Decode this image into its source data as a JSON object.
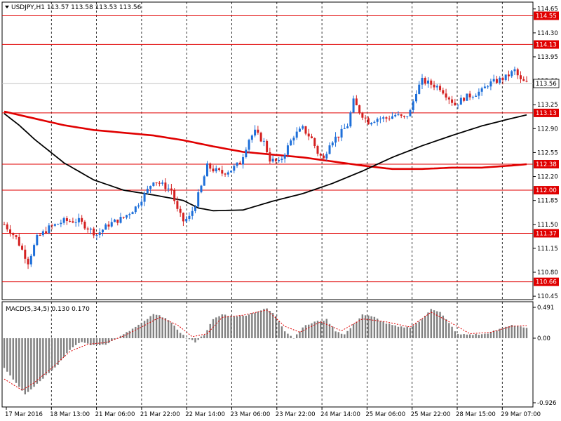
{
  "colors": {
    "background": "#ffffff",
    "grid": "#000000",
    "bull": "#1e6fd9",
    "bear": "#d42020",
    "level": "#e00000",
    "ma_slow": "#e00000",
    "ma_fast": "#000000",
    "macd_hist": "#808080",
    "macd_signal": "#e00000",
    "current_price_line": "#c0c0c0"
  },
  "chart_data": [
    {
      "type": "candlestick",
      "symbol": "USDJPY,H1",
      "header": "USDJPY,H1  113.57 113.58 113.53 113.56",
      "open": 113.57,
      "high": 113.58,
      "low": 113.53,
      "close": 113.56,
      "ylim": [
        110.4,
        114.75
      ],
      "y_ticks": [
        "114.65",
        "114.30",
        "113.95",
        "113.60",
        "113.25",
        "112.90",
        "112.55",
        "112.20",
        "111.85",
        "111.50",
        "111.15",
        "110.80",
        "110.45"
      ],
      "x_ticks": [
        "17 Mar 2016",
        "18 Mar 13:00",
        "21 Mar 06:00",
        "21 Mar 22:00",
        "22 Mar 14:00",
        "23 Mar 06:00",
        "23 Mar 22:00",
        "24 Mar 14:00",
        "25 Mar 06:00",
        "25 Mar 22:00",
        "28 Mar 15:00",
        "29 Mar 07:00"
      ],
      "levels": [
        {
          "value": 114.55,
          "label": "114.55"
        },
        {
          "value": 114.13,
          "label": "114.13"
        },
        {
          "value": 113.13,
          "label": "113.13"
        },
        {
          "value": 112.38,
          "label": "112.38"
        },
        {
          "value": 112.0,
          "label": "112.00"
        },
        {
          "value": 111.37,
          "label": "111.37"
        },
        {
          "value": 110.66,
          "label": "110.66"
        }
      ],
      "current_price": {
        "value": 113.56,
        "label": "113.56"
      },
      "close_path": [
        [
          0,
          111.5
        ],
        [
          4,
          111.3
        ],
        [
          8,
          110.95
        ],
        [
          11,
          111.3
        ],
        [
          15,
          111.45
        ],
        [
          20,
          111.55
        ],
        [
          25,
          111.55
        ],
        [
          28,
          111.45
        ],
        [
          31,
          111.35
        ],
        [
          35,
          111.5
        ],
        [
          40,
          111.6
        ],
        [
          44,
          111.75
        ],
        [
          48,
          112.0
        ],
        [
          50,
          112.15
        ],
        [
          54,
          112.05
        ],
        [
          56,
          112.0
        ],
        [
          58,
          111.7
        ],
        [
          60,
          111.55
        ],
        [
          62,
          111.6
        ],
        [
          64,
          111.8
        ],
        [
          66,
          112.05
        ],
        [
          68,
          112.35
        ],
        [
          70,
          112.3
        ],
        [
          73,
          112.25
        ],
        [
          76,
          112.3
        ],
        [
          79,
          112.4
        ],
        [
          82,
          112.75
        ],
        [
          84,
          112.85
        ],
        [
          87,
          112.7
        ],
        [
          89,
          112.45
        ],
        [
          92,
          112.4
        ],
        [
          94,
          112.55
        ],
        [
          97,
          112.8
        ],
        [
          100,
          112.9
        ],
        [
          103,
          112.75
        ],
        [
          105,
          112.55
        ],
        [
          107,
          112.45
        ],
        [
          109,
          112.7
        ],
        [
          112,
          112.8
        ],
        [
          115,
          112.95
        ],
        [
          117,
          113.3
        ],
        [
          119,
          113.15
        ],
        [
          122,
          113.0
        ],
        [
          125,
          113.05
        ],
        [
          128,
          113.05
        ],
        [
          131,
          113.1
        ],
        [
          134,
          113.05
        ],
        [
          136,
          113.15
        ],
        [
          138,
          113.45
        ],
        [
          140,
          113.6
        ],
        [
          143,
          113.55
        ],
        [
          146,
          113.5
        ],
        [
          149,
          113.35
        ],
        [
          151,
          113.25
        ],
        [
          154,
          113.35
        ],
        [
          157,
          113.4
        ],
        [
          160,
          113.45
        ],
        [
          162,
          113.55
        ],
        [
          165,
          113.6
        ],
        [
          168,
          113.65
        ],
        [
          171,
          113.75
        ],
        [
          173,
          113.6
        ],
        [
          175,
          113.56
        ]
      ],
      "ma_slow_path": [
        [
          0,
          113.15
        ],
        [
          10,
          113.05
        ],
        [
          20,
          112.95
        ],
        [
          30,
          112.88
        ],
        [
          40,
          112.84
        ],
        [
          50,
          112.8
        ],
        [
          60,
          112.73
        ],
        [
          70,
          112.64
        ],
        [
          80,
          112.56
        ],
        [
          90,
          112.52
        ],
        [
          100,
          112.48
        ],
        [
          110,
          112.42
        ],
        [
          120,
          112.36
        ],
        [
          130,
          112.31
        ],
        [
          140,
          112.31
        ],
        [
          150,
          112.33
        ],
        [
          160,
          112.33
        ],
        [
          170,
          112.36
        ],
        [
          175,
          112.38
        ]
      ],
      "ma_fast_path": [
        [
          0,
          113.12
        ],
        [
          5,
          112.95
        ],
        [
          10,
          112.75
        ],
        [
          20,
          112.4
        ],
        [
          30,
          112.15
        ],
        [
          40,
          112.0
        ],
        [
          50,
          111.93
        ],
        [
          60,
          111.85
        ],
        [
          65,
          111.74
        ],
        [
          70,
          111.7
        ],
        [
          80,
          111.71
        ],
        [
          90,
          111.84
        ],
        [
          100,
          111.95
        ],
        [
          110,
          112.1
        ],
        [
          120,
          112.28
        ],
        [
          130,
          112.48
        ],
        [
          140,
          112.65
        ],
        [
          150,
          112.8
        ],
        [
          160,
          112.94
        ],
        [
          170,
          113.05
        ],
        [
          175,
          113.1
        ]
      ]
    },
    {
      "type": "bar",
      "title": "MACD(5,34,5) 0.130 0.170",
      "ylim": [
        -0.926,
        0.491
      ],
      "y_ticks": [
        "0.491",
        "0.00",
        "-0.926"
      ],
      "hist_path": [
        [
          0,
          -0.4
        ],
        [
          4,
          -0.6
        ],
        [
          7,
          -0.75
        ],
        [
          10,
          -0.65
        ],
        [
          14,
          -0.5
        ],
        [
          18,
          -0.35
        ],
        [
          22,
          -0.15
        ],
        [
          26,
          -0.05
        ],
        [
          30,
          -0.1
        ],
        [
          34,
          -0.08
        ],
        [
          38,
          0.0
        ],
        [
          42,
          0.1
        ],
        [
          46,
          0.2
        ],
        [
          50,
          0.32
        ],
        [
          54,
          0.28
        ],
        [
          58,
          0.12
        ],
        [
          61,
          0.0
        ],
        [
          64,
          -0.05
        ],
        [
          67,
          0.05
        ],
        [
          70,
          0.25
        ],
        [
          73,
          0.32
        ],
        [
          76,
          0.3
        ],
        [
          80,
          0.3
        ],
        [
          84,
          0.35
        ],
        [
          88,
          0.4
        ],
        [
          91,
          0.3
        ],
        [
          94,
          0.1
        ],
        [
          97,
          0.0
        ],
        [
          100,
          0.15
        ],
        [
          104,
          0.22
        ],
        [
          108,
          0.25
        ],
        [
          111,
          0.1
        ],
        [
          114,
          0.05
        ],
        [
          117,
          0.18
        ],
        [
          120,
          0.32
        ],
        [
          124,
          0.28
        ],
        [
          128,
          0.2
        ],
        [
          132,
          0.15
        ],
        [
          136,
          0.15
        ],
        [
          140,
          0.25
        ],
        [
          143,
          0.4
        ],
        [
          146,
          0.35
        ],
        [
          149,
          0.2
        ],
        [
          152,
          0.05
        ],
        [
          155,
          0.05
        ],
        [
          160,
          0.05
        ],
        [
          163,
          0.08
        ],
        [
          166,
          0.12
        ],
        [
          170,
          0.18
        ],
        [
          173,
          0.16
        ],
        [
          175,
          0.13
        ]
      ],
      "signal_path": [
        [
          0,
          -0.55
        ],
        [
          6,
          -0.7
        ],
        [
          10,
          -0.6
        ],
        [
          16,
          -0.4
        ],
        [
          22,
          -0.18
        ],
        [
          28,
          -0.08
        ],
        [
          34,
          -0.06
        ],
        [
          40,
          0.03
        ],
        [
          46,
          0.15
        ],
        [
          52,
          0.28
        ],
        [
          58,
          0.18
        ],
        [
          63,
          0.02
        ],
        [
          68,
          0.06
        ],
        [
          73,
          0.28
        ],
        [
          80,
          0.31
        ],
        [
          88,
          0.38
        ],
        [
          94,
          0.16
        ],
        [
          99,
          0.08
        ],
        [
          106,
          0.22
        ],
        [
          113,
          0.1
        ],
        [
          120,
          0.26
        ],
        [
          128,
          0.22
        ],
        [
          136,
          0.15
        ],
        [
          143,
          0.35
        ],
        [
          150,
          0.2
        ],
        [
          156,
          0.06
        ],
        [
          163,
          0.08
        ],
        [
          170,
          0.16
        ],
        [
          175,
          0.17
        ]
      ]
    }
  ]
}
